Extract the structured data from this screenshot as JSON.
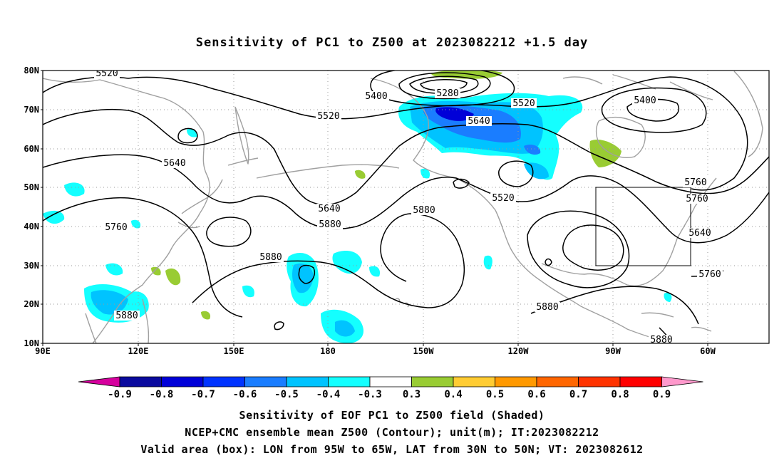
{
  "title": "Sensitivity of PC1 to Z500 at 2023082212 +1.5 day",
  "map": {
    "lat_labels": [
      "80N",
      "70N",
      "60N",
      "50N",
      "40N",
      "30N",
      "20N",
      "10N"
    ],
    "lon_labels": [
      "90E",
      "120E",
      "150E",
      "180",
      "150W",
      "120W",
      "90W",
      "60W"
    ],
    "coastline_color": "#a0a0a0",
    "contour_color": "#000000",
    "valid_box": {
      "lon_from": "95W",
      "lon_to": "65W",
      "lat_from": "30N",
      "lat_to": "50N"
    },
    "contour_labels": [
      "5520",
      "5400",
      "5280",
      "5520",
      "5400",
      "5520",
      "5640",
      "5640",
      "5640",
      "5760",
      "5880",
      "5760",
      "5880",
      "5520",
      "5640",
      "5760",
      "5880",
      "5880",
      "5880",
      "5880",
      "5760"
    ]
  },
  "colorbar": {
    "labels": [
      "-0.9",
      "-0.8",
      "-0.7",
      "-0.6",
      "-0.5",
      "-0.4",
      "-0.3",
      "0.3",
      "0.4",
      "0.5",
      "0.6",
      "0.7",
      "0.8",
      "0.9"
    ],
    "colors": [
      "#d6009e",
      "#0a0a9e",
      "#0000d8",
      "#0033ff",
      "#1a7dff",
      "#00c3ff",
      "#14ffff",
      "#ffffff",
      "#99cc33",
      "#ffcc33",
      "#ff9900",
      "#ff6600",
      "#ff3300",
      "#ff0000",
      "#ff99cc"
    ]
  },
  "shading_colors": {
    "dark_blue": "#0000d8",
    "mid_blue": "#1a7dff",
    "light_blue": "#00c3ff",
    "cyan": "#14ffff",
    "green": "#99cc33"
  },
  "captions": {
    "line1": "Sensitivity of EOF PC1 to Z500 field (Shaded)",
    "line2": "NCEP+CMC ensemble mean Z500 (Contour); unit(m); IT:2023082212",
    "line3": "Valid area (box): LON from 95W to 65W, LAT from 30N to 50N; VT: 2023082612"
  }
}
